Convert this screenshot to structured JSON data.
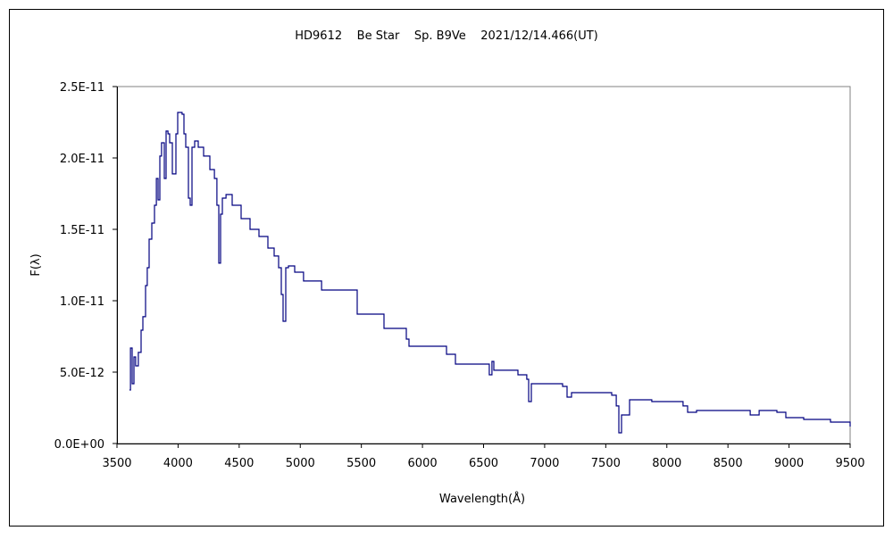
{
  "chart_data": {
    "type": "line",
    "title": "HD9612    Be Star    Sp. B9Ve    2021/12/14.466(UT)",
    "xlabel": "Wavelength(Å)",
    "ylabel": "F(λ)",
    "xlim": [
      3500,
      9500
    ],
    "ylim": [
      0,
      2.5e-11
    ],
    "x_ticks": [
      3500,
      4000,
      4500,
      5000,
      5500,
      6000,
      6500,
      7000,
      7500,
      8000,
      8500,
      9000,
      9500
    ],
    "x_tick_labels": [
      "3500",
      "4000",
      "4500",
      "5000",
      "5500",
      "6000",
      "6500",
      "7000",
      "7500",
      "8000",
      "8500",
      "9000",
      "9500"
    ],
    "y_ticks": [
      0,
      5e-12,
      1e-11,
      1.5e-11,
      2e-11,
      2.5e-11
    ],
    "y_tick_labels": [
      "0.0E+00",
      "5.0E-12",
      "1.0E-11",
      "1.5E-11",
      "2.0E-11",
      "2.5E-11"
    ],
    "grid": false,
    "legend": "none",
    "line_color": "#000080",
    "y_unit_scale": 1e-12,
    "series": [
      {
        "name": "F(λ)",
        "x": [
          3602,
          3610,
          3624,
          3639,
          3653,
          3675,
          3697,
          3712,
          3734,
          3748,
          3763,
          3785,
          3807,
          3822,
          3836,
          3851,
          3865,
          3887,
          3902,
          3917,
          3931,
          3953,
          3968,
          3982,
          3997,
          4033,
          4048,
          4063,
          4085,
          4099,
          4114,
          4136,
          4165,
          4209,
          4260,
          4297,
          4318,
          4333,
          4348,
          4362,
          4392,
          4443,
          4516,
          4589,
          4662,
          4735,
          4786,
          4823,
          4845,
          4859,
          4881,
          4903,
          4954,
          5027,
          5174,
          5466,
          5685,
          5868,
          5890,
          5977,
          6197,
          6270,
          6489,
          6547,
          6569,
          6584,
          6781,
          6854,
          6869,
          6891,
          7147,
          7183,
          7220,
          7549,
          7586,
          7607,
          7629,
          7695,
          7877,
          8133,
          8170,
          8243,
          8645,
          8682,
          8755,
          8901,
          8974,
          9120,
          9339,
          9500
        ],
        "y": [
          3.75,
          6.69,
          4.19,
          6.06,
          5.44,
          6.38,
          7.94,
          8.88,
          11.06,
          12.31,
          14.31,
          15.44,
          16.69,
          18.56,
          17.06,
          20.13,
          21.06,
          18.56,
          21.88,
          21.69,
          21.06,
          18.88,
          18.88,
          21.69,
          23.19,
          23.06,
          21.69,
          20.75,
          17.19,
          16.69,
          20.75,
          21.19,
          20.75,
          20.13,
          19.19,
          18.56,
          16.69,
          12.63,
          16.06,
          17.19,
          17.44,
          16.69,
          15.75,
          15.0,
          14.5,
          13.69,
          13.13,
          12.31,
          10.44,
          8.56,
          12.31,
          12.44,
          12.0,
          11.38,
          10.75,
          9.06,
          8.06,
          7.31,
          6.81,
          6.81,
          6.25,
          5.56,
          5.56,
          4.81,
          5.75,
          5.13,
          4.81,
          4.5,
          2.94,
          4.19,
          4.0,
          3.25,
          3.56,
          3.38,
          2.63,
          0.75,
          2.0,
          3.06,
          2.94,
          2.63,
          2.19,
          2.31,
          2.31,
          2.0,
          2.31,
          2.19,
          1.81,
          1.69,
          1.5,
          1.19
        ]
      }
    ]
  }
}
